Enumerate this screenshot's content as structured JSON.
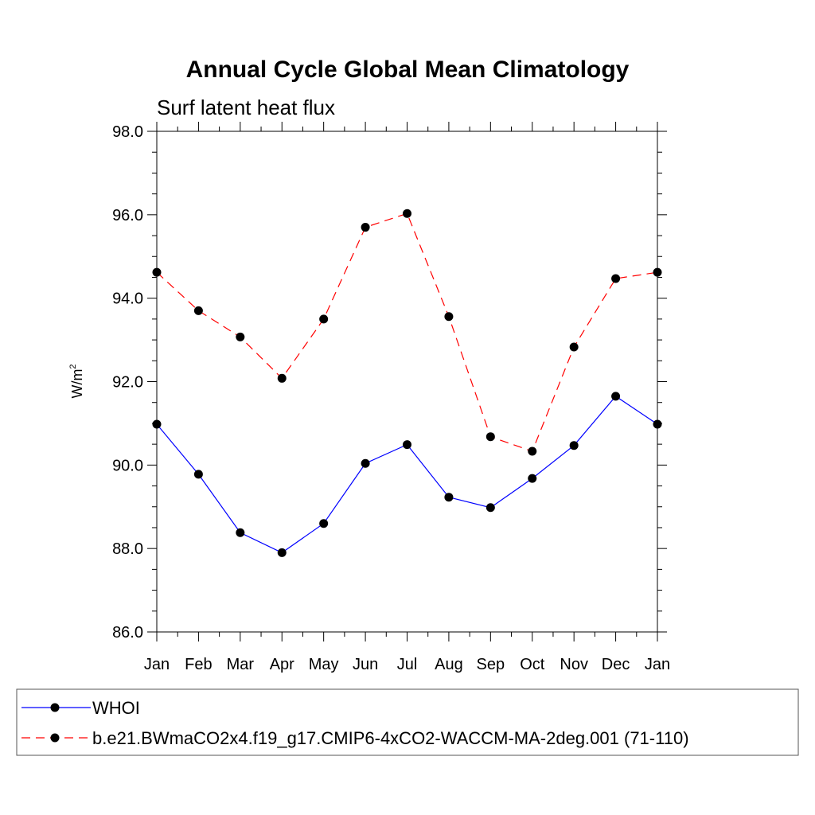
{
  "chart_data": {
    "type": "line",
    "title": "Annual Cycle Global Mean Climatology",
    "subtitle": "Surf latent heat flux",
    "xlabel": "",
    "ylabel": "W/m",
    "ylabel_superscript": "2",
    "categories": [
      "Jan",
      "Feb",
      "Mar",
      "Apr",
      "May",
      "Jun",
      "Jul",
      "Aug",
      "Sep",
      "Oct",
      "Nov",
      "Dec",
      "Jan"
    ],
    "ylim": [
      86.0,
      98.0
    ],
    "yticks": [
      "86.0",
      "88.0",
      "90.0",
      "92.0",
      "94.0",
      "96.0",
      "98.0"
    ],
    "series": [
      {
        "name": "WHOI",
        "color": "#0000ff",
        "style": "solid",
        "values": [
          90.98,
          89.78,
          88.38,
          87.9,
          88.6,
          90.04,
          90.49,
          89.23,
          88.98,
          89.68,
          90.47,
          91.65,
          90.98
        ]
      },
      {
        "name": "b.e21.BWmaCO2x4.f19_g17.CMIP6-4xCO2-WACCM-MA-2deg.001 (71-110)",
        "color": "#ff0000",
        "style": "dashed",
        "values": [
          94.62,
          93.7,
          93.07,
          92.08,
          93.5,
          95.7,
          96.03,
          93.56,
          90.68,
          90.33,
          92.83,
          94.47,
          94.62
        ]
      }
    ],
    "grid": false,
    "legend_position": "bottom"
  }
}
